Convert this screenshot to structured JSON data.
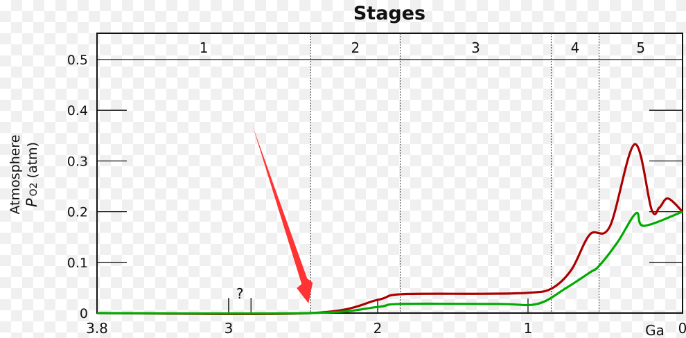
{
  "chart_data": {
    "type": "line",
    "title": "Stages",
    "ylabel_line1": "Atmosphere",
    "ylabel_p": "P",
    "ylabel_sub": "O2",
    "ylabel_unit": "(atm)",
    "xlabel": "Ga",
    "xlim": [
      3.8,
      0
    ],
    "ylim": [
      0,
      0.5
    ],
    "x_ticks": [
      "3.8",
      "3",
      "2",
      "1",
      "0"
    ],
    "x_tick_values": [
      3.8,
      3,
      2,
      1,
      0
    ],
    "y_ticks": [
      "0",
      "0.1",
      "0.2",
      "0.3",
      "0.4",
      "0.5"
    ],
    "y_tick_values": [
      0,
      0.1,
      0.2,
      0.3,
      0.4,
      0.5
    ],
    "uncertainty_label": "?",
    "uncertainty_range": [
      3.0,
      2.85
    ],
    "stages": [
      {
        "label": "1",
        "from": 3.8,
        "to": 2.45
      },
      {
        "label": "2",
        "from": 2.45,
        "to": 1.85
      },
      {
        "label": "3",
        "from": 1.85,
        "to": 0.85
      },
      {
        "label": "4",
        "from": 0.85,
        "to": 0.54
      },
      {
        "label": "5",
        "from": 0.54,
        "to": 0
      }
    ],
    "series": [
      {
        "color": "#aa0000",
        "points": [
          [
            3.8,
            0
          ],
          [
            2.45,
            0
          ],
          [
            2.0,
            0.026
          ],
          [
            1.85,
            0.037
          ],
          [
            1.3,
            0.038
          ],
          [
            1.0,
            0.04
          ],
          [
            0.85,
            0.048
          ],
          [
            0.72,
            0.085
          ],
          [
            0.6,
            0.155
          ],
          [
            0.47,
            0.171
          ],
          [
            0.31,
            0.333
          ],
          [
            0.2,
            0.204
          ],
          [
            0.15,
            0.208
          ],
          [
            0.094,
            0.226
          ],
          [
            0,
            0.2
          ]
        ]
      },
      {
        "color": "#00aa00",
        "points": [
          [
            3.8,
            0
          ],
          [
            2.45,
            0
          ],
          [
            2.0,
            0.012
          ],
          [
            1.85,
            0.018
          ],
          [
            1.2,
            0.018
          ],
          [
            0.94,
            0.018
          ],
          [
            0.75,
            0.05
          ],
          [
            0.6,
            0.08
          ],
          [
            0.54,
            0.093
          ],
          [
            0.42,
            0.14
          ],
          [
            0.3,
            0.197
          ],
          [
            0.25,
            0.172
          ],
          [
            0,
            0.2
          ]
        ]
      }
    ],
    "annotation_arrow": {
      "color": "#ff3333",
      "points_to": [
        2.45,
        0
      ]
    },
    "grid": false
  }
}
